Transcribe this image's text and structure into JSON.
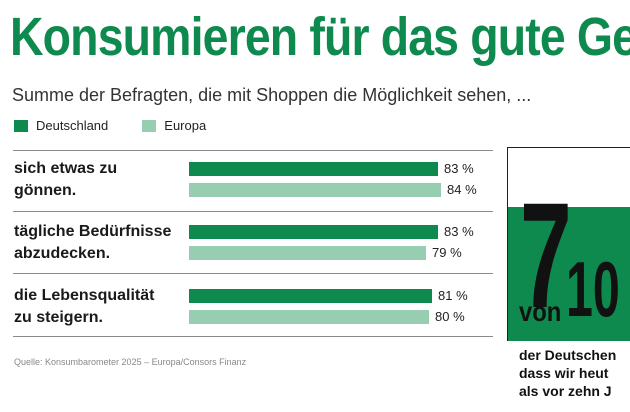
{
  "title": "Konsumieren für das gute Gef",
  "subtitle": "Summe der Befragten, die mit Shoppen die Möglichkeit sehen, ...",
  "colors": {
    "primary": "#0e8a4e",
    "secondary": "#97cdb0"
  },
  "chart_data": {
    "type": "bar",
    "orientation": "horizontal",
    "title": "Konsumieren für das gute Gef",
    "subtitle": "Summe der Befragten, die mit Shoppen die Möglichkeit sehen, ...",
    "categories": [
      "sich etwas zu\ngönnen.",
      "tägliche Bedürfnisse\nabzudecken.",
      "die Lebensqualität\nzu steigern."
    ],
    "series": [
      {
        "name": "Deutschland",
        "values": [
          83,
          83,
          81
        ],
        "labels": [
          "83 %",
          "83 %",
          "81 %"
        ]
      },
      {
        "name": "Europa",
        "values": [
          84,
          79,
          80
        ],
        "labels": [
          "84 %",
          "79 %",
          "80 %"
        ]
      }
    ],
    "unit": "%",
    "xlim": [
      0,
      100
    ]
  },
  "source": "Quelle: Konsumbarometer 2025 – Europa/Consors Finanz",
  "side_panel": {
    "number": "7",
    "von": "von",
    "total": "10",
    "text": "der Deutschen\ndass wir heut\nals vor zehn J"
  }
}
